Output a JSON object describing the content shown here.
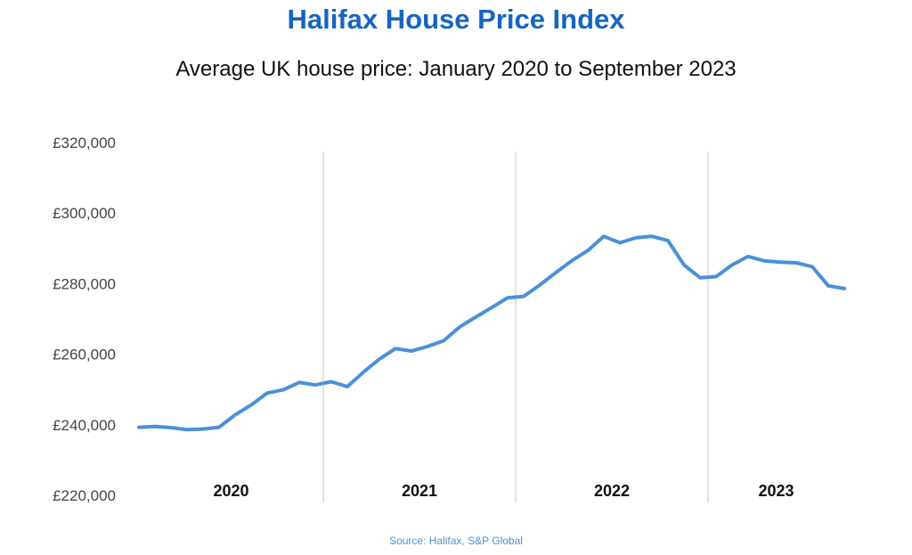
{
  "chart_data": {
    "type": "line",
    "title": "Halifax House Price Index",
    "subtitle": "Average UK house price: January 2020 to September 2023",
    "source": "Source: Halifax,  S&P Global",
    "ylabel": "",
    "xlabel": "",
    "ylim": [
      220000,
      320000
    ],
    "y_ticks": [
      220000,
      240000,
      260000,
      280000,
      300000,
      320000
    ],
    "y_tick_labels": [
      "£220,000",
      "£240,000",
      "£260,000",
      "£280,000",
      "£300,000",
      "£320,000"
    ],
    "year_labels": [
      "2020",
      "2021",
      "2022",
      "2023"
    ],
    "grid": "vertical separators between years",
    "line_color": "#4a90d9",
    "title_color": "#1565c0",
    "series": [
      {
        "name": "Average UK house price",
        "values": [
          239300,
          239500,
          239200,
          238600,
          238800,
          239300,
          242800,
          245600,
          249000,
          249900,
          252000,
          251300,
          252200,
          250800,
          254900,
          258600,
          261600,
          260900,
          262200,
          263800,
          267700,
          270500,
          273200,
          276000,
          276400,
          279600,
          283100,
          286500,
          289400,
          293400,
          291600,
          293000,
          293400,
          292200,
          285300,
          281700,
          282000,
          285300,
          287700,
          286500,
          286100,
          285900,
          284800,
          279400,
          278600
        ]
      }
    ]
  }
}
